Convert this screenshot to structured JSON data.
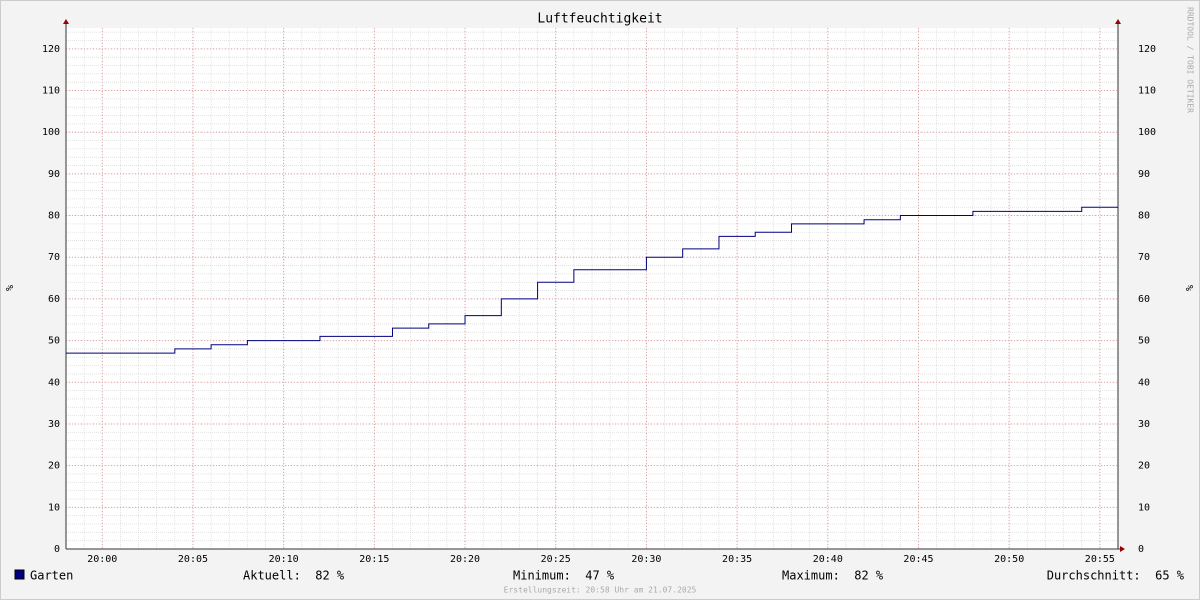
{
  "chart_data": {
    "type": "step",
    "title": "Luftfeuchtigkeit",
    "y_label": "%",
    "x": [
      "19:58",
      "20:04",
      "20:06",
      "20:08",
      "20:12",
      "20:16",
      "20:18",
      "20:20",
      "20:22",
      "20:24",
      "20:26",
      "20:30",
      "20:32",
      "20:34",
      "20:36",
      "20:38",
      "20:42",
      "20:44",
      "20:48",
      "20:54"
    ],
    "series": [
      {
        "name": "Garten",
        "color": "#000080",
        "values": [
          47,
          48,
          49,
          50,
          51,
          53,
          54,
          56,
          60,
          64,
          67,
          70,
          72,
          75,
          76,
          78,
          79,
          80,
          81,
          82
        ]
      }
    ],
    "xlim": [
      "19:58",
      "20:56"
    ],
    "xticks": [
      "20:00",
      "20:05",
      "20:10",
      "20:15",
      "20:20",
      "20:25",
      "20:30",
      "20:35",
      "20:40",
      "20:45",
      "20:50",
      "20:55"
    ],
    "ylim": [
      0,
      125
    ],
    "yticks": [
      0,
      10,
      20,
      30,
      40,
      50,
      60,
      70,
      80,
      90,
      100,
      110,
      120
    ],
    "grid": true,
    "stats": [
      "Aktuell:  82 %",
      "Minimum:  47 %",
      "Maximum:  82 %",
      "Durchschnitt:  65 %"
    ],
    "watermark": "RRDTOOL / TOBI OETIKER",
    "footer": "Erstellungszeit: 20:58 Uhr am 21.07.2025"
  }
}
